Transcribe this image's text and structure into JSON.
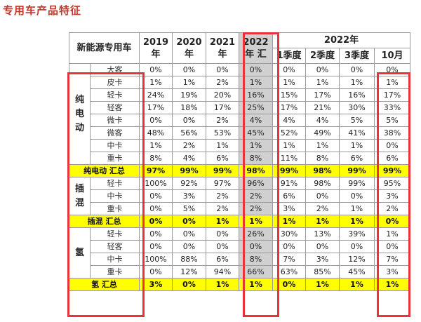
{
  "title": "专用车产品特征",
  "table": {
    "corner_label": "新能源专用车",
    "year_headers": [
      {
        "l1": "2019",
        "l2": "年"
      },
      {
        "l1": "2020",
        "l2": "年"
      },
      {
        "l1": "2021",
        "l2": "年"
      },
      {
        "l1": "2022",
        "l2": "年 汇"
      }
    ],
    "group_header": "2022年",
    "quarter_headers": [
      "1季度",
      "2季度",
      "3季度",
      "10月"
    ],
    "groups": [
      {
        "name": "纯电动",
        "rows": [
          {
            "sub": "大客",
            "vals": [
              "0%",
              "0%",
              "0%",
              "0%",
              "0%",
              "0%",
              "0%",
              "0%"
            ]
          },
          {
            "sub": "皮卡",
            "vals": [
              "1%",
              "1%",
              "2%",
              "1%",
              "1%",
              "1%",
              "1%",
              "1%"
            ]
          },
          {
            "sub": "轻卡",
            "vals": [
              "24%",
              "19%",
              "20%",
              "16%",
              "15%",
              "17%",
              "16%",
              "17%"
            ]
          },
          {
            "sub": "轻客",
            "vals": [
              "17%",
              "18%",
              "17%",
              "25%",
              "17%",
              "21%",
              "30%",
              "33%"
            ]
          },
          {
            "sub": "微卡",
            "vals": [
              "0%",
              "0%",
              "2%",
              "4%",
              "4%",
              "4%",
              "5%",
              "5%"
            ]
          },
          {
            "sub": "微客",
            "vals": [
              "48%",
              "56%",
              "53%",
              "45%",
              "52%",
              "49%",
              "41%",
              "38%"
            ]
          },
          {
            "sub": "中卡",
            "vals": [
              "1%",
              "2%",
              "1%",
              "1%",
              "1%",
              "1%",
              "1%",
              "0%"
            ]
          },
          {
            "sub": "重卡",
            "vals": [
              "8%",
              "4%",
              "6%",
              "8%",
              "11%",
              "8%",
              "6%",
              "6%"
            ]
          }
        ],
        "total": {
          "label": "纯电动 汇总",
          "vals": [
            "97%",
            "99%",
            "99%",
            "98%",
            "99%",
            "98%",
            "99%",
            "99%"
          ]
        }
      },
      {
        "name": "插混",
        "rows": [
          {
            "sub": "轻卡",
            "vals": [
              "100%",
              "92%",
              "97%",
              "96%",
              "91%",
              "98%",
              "99%",
              "95%"
            ]
          },
          {
            "sub": "中卡",
            "vals": [
              "0%",
              "3%",
              "2%",
              "2%",
              "6%",
              "0%",
              "0%",
              "3%"
            ]
          },
          {
            "sub": "重卡",
            "vals": [
              "0%",
              "5%",
              "2%",
              "2%",
              "3%",
              "2%",
              "1%",
              "2%"
            ]
          }
        ],
        "total": {
          "label": "插混 汇总",
          "vals": [
            "0%",
            "0%",
            "1%",
            "1%",
            "1%",
            "1%",
            "1%",
            "0%"
          ]
        }
      },
      {
        "name": "氢",
        "rows": [
          {
            "sub": "轻卡",
            "vals": [
              "0%",
              "0%",
              "0%",
              "26%",
              "30%",
              "13%",
              "39%",
              "1%"
            ]
          },
          {
            "sub": "轻客",
            "vals": [
              "0%",
              "0%",
              "0%",
              "0%",
              "0%",
              "0%",
              "0%",
              "0%"
            ]
          },
          {
            "sub": "中卡",
            "vals": [
              "100%",
              "88%",
              "6%",
              "8%",
              "7%",
              "3%",
              "12%",
              "7%"
            ]
          },
          {
            "sub": "重卡",
            "vals": [
              "0%",
              "12%",
              "94%",
              "66%",
              "63%",
              "85%",
              "45%",
              "3%"
            ]
          }
        ],
        "total": {
          "label": "氢 汇总",
          "vals": [
            "3%",
            "0%",
            "1%",
            "1%",
            "0%",
            "1%",
            "1%",
            "1%"
          ]
        }
      }
    ]
  }
}
